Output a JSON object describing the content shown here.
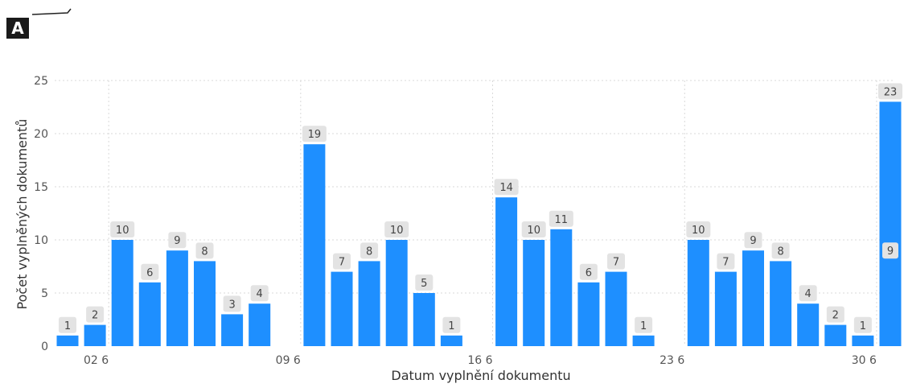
{
  "panel": {
    "label": "A"
  },
  "colors": {
    "bar": "#1E8FFF",
    "label_bg": "#E3E3E3",
    "grid": "#D9D9D9"
  },
  "chart_data": {
    "type": "bar",
    "xlabel": "Datum vyplnění dokumentu",
    "ylabel": "Počet vyplněných dokumentů",
    "ylim": [
      0,
      25
    ],
    "yticks": [
      0,
      5,
      10,
      15,
      20,
      25
    ],
    "grid": true,
    "x_tick_labels": [
      {
        "label": "02 6",
        "after_index": 1
      },
      {
        "label": "09 6",
        "after_index": 8
      },
      {
        "label": "16 6",
        "after_index": 15
      },
      {
        "label": "23 6",
        "after_index": 22
      },
      {
        "label": "30 6",
        "after_index": 29
      }
    ],
    "values": [
      1,
      2,
      10,
      6,
      9,
      8,
      3,
      4,
      null,
      19,
      7,
      8,
      10,
      5,
      1,
      null,
      14,
      10,
      11,
      6,
      7,
      1,
      null,
      10,
      7,
      9,
      8,
      4,
      2,
      1,
      23
    ],
    "inner_labels": [
      {
        "index": 30,
        "label": "9"
      }
    ]
  }
}
